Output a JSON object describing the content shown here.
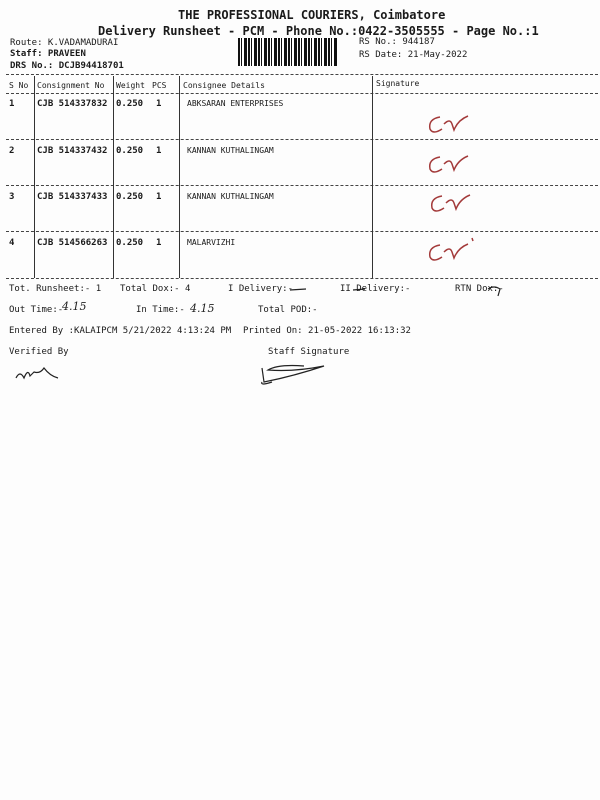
{
  "header": {
    "company": "THE PROFESSIONAL COURIERS, Coimbatore",
    "subtitle": "Delivery Runsheet - PCM - Phone No.:0422-3505555 - Page No.:1",
    "route": "Route: K.VADAMADURAI",
    "staff": "Staff: PRAVEEN",
    "drs": "DRS No.: DCJB94418701",
    "rs_no": "RS No.: 944187",
    "rs_date": "RS Date: 21-May-2022"
  },
  "table": {
    "columns": [
      "S No",
      "Consignment No",
      "Weight",
      "PCS",
      "Consignee Details",
      "Signature"
    ],
    "rows": [
      {
        "sno": "1",
        "consignment": "CJB 514337832",
        "weight": "0.250",
        "pcs": "1",
        "consignee": "ABKSARAN ENTERPRISES"
      },
      {
        "sno": "2",
        "consignment": "CJB 514337432",
        "weight": "0.250",
        "pcs": "1",
        "consignee": "KANNAN KUTHALINGAM"
      },
      {
        "sno": "3",
        "consignment": "CJB 514337433",
        "weight": "0.250",
        "pcs": "1",
        "consignee": "KANNAN KUTHALINGAM"
      },
      {
        "sno": "4",
        "consignment": "CJB 514566263",
        "weight": "0.250",
        "pcs": "1",
        "consignee": "MALARVIZHI"
      }
    ]
  },
  "summary": {
    "tot_runsheet": "Tot. Runsheet:- 1",
    "total_dox": "Total Dox:-    4",
    "i_delivery": "I Delivery:-",
    "ii_delivery": "II Delivery:-",
    "rtn_dox": "RTN Dox:-",
    "out_time": "Out Time:-",
    "out_time_hand": "4.15",
    "in_time": "In Time:-",
    "in_time_hand": "4.15",
    "total_pod": "Total POD:-",
    "entered_by": "Entered By :KALAIPCM 5/21/2022 4:13:24 PM",
    "printed_on": "Printed On: 21-05-2022 16:13:32",
    "verified_by": "Verified By",
    "staff_signature": "Staff Signature"
  },
  "colors": {
    "signature_ink": "#a33a3a"
  }
}
